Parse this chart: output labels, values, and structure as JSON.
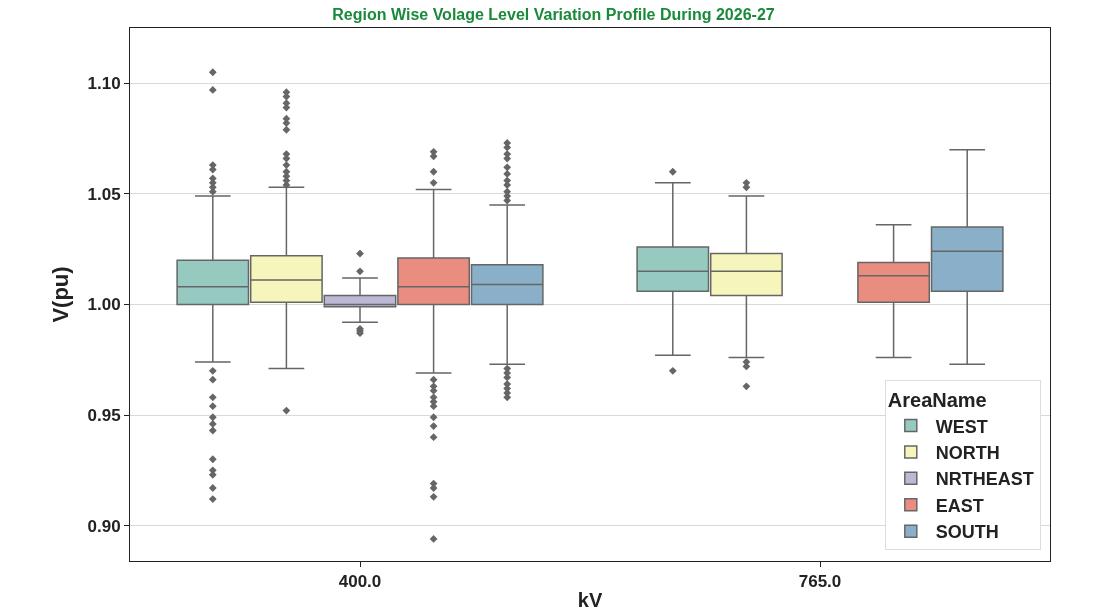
{
  "chart_data": {
    "type": "box",
    "title": "Region Wise Volage Level Variation Profile During 2026-27",
    "xlabel": "kV",
    "ylabel": "V(pu)",
    "legend_title": "AreaName",
    "categories": [
      "400.0",
      "765.0"
    ],
    "ylim": [
      0.884,
      1.125
    ],
    "yticks": [
      {
        "value": 0.9,
        "label": "0.90"
      },
      {
        "value": 0.95,
        "label": "0.95"
      },
      {
        "value": 1.0,
        "label": "1.00"
      },
      {
        "value": 1.05,
        "label": "1.05"
      },
      {
        "value": 1.1,
        "label": "1.10"
      }
    ],
    "grid": "y",
    "legend": "bottom right",
    "marker": "diamond",
    "series": [
      {
        "name": "WEST",
        "color": "#96cac1",
        "boxes": [
          {
            "low": 0.974,
            "q1": 1.0,
            "median": 1.008,
            "q3": 1.02,
            "high": 1.049,
            "outliers": [
              1.105,
              1.097,
              1.063,
              1.061,
              1.057,
              1.055,
              1.053,
              1.051,
              0.97,
              0.966,
              0.958,
              0.954,
              0.949,
              0.946,
              0.943,
              0.93,
              0.925,
              0.923,
              0.917,
              0.912
            ]
          },
          {
            "low": 0.977,
            "q1": 1.006,
            "median": 1.015,
            "q3": 1.026,
            "high": 1.055,
            "outliers": [
              1.06,
              0.97
            ]
          }
        ]
      },
      {
        "name": "NORTH",
        "color": "#f6f6bc",
        "boxes": [
          {
            "low": 0.971,
            "q1": 1.001,
            "median": 1.011,
            "q3": 1.022,
            "high": 1.053,
            "outliers": [
              1.096,
              1.094,
              1.091,
              1.089,
              1.084,
              1.082,
              1.079,
              1.068,
              1.066,
              1.063,
              1.06,
              1.058,
              1.056,
              1.054,
              0.952
            ]
          },
          {
            "low": 0.976,
            "q1": 1.004,
            "median": 1.015,
            "q3": 1.023,
            "high": 1.049,
            "outliers": [
              1.055,
              1.053,
              0.974,
              0.972,
              0.963
            ]
          }
        ]
      },
      {
        "name": "NRTHEAST",
        "color": "#bcb9d6",
        "boxes": [
          {
            "low": 0.992,
            "q1": 0.999,
            "median": 1.0,
            "q3": 1.004,
            "high": 1.012,
            "outliers": [
              1.023,
              1.015,
              0.989,
              0.988,
              0.987
            ]
          },
          null
        ]
      },
      {
        "name": "EAST",
        "color": "#e98d81",
        "boxes": [
          {
            "low": 0.969,
            "q1": 1.0,
            "median": 1.008,
            "q3": 1.021,
            "high": 1.052,
            "outliers": [
              1.069,
              1.067,
              1.06,
              1.055,
              0.966,
              0.963,
              0.961,
              0.958,
              0.956,
              0.954,
              0.949,
              0.945,
              0.94,
              0.919,
              0.917,
              0.913,
              0.894
            ]
          },
          {
            "low": 0.976,
            "q1": 1.001,
            "median": 1.013,
            "q3": 1.019,
            "high": 1.036
          }
        ]
      },
      {
        "name": "SOUTH",
        "color": "#8aafc9",
        "boxes": [
          {
            "low": 0.973,
            "q1": 1.0,
            "median": 1.009,
            "q3": 1.018,
            "high": 1.045,
            "outliers": [
              1.073,
              1.071,
              1.068,
              1.066,
              1.062,
              1.059,
              1.056,
              1.054,
              1.051,
              1.049,
              1.047,
              0.971,
              0.969,
              0.967,
              0.964,
              0.962,
              0.96,
              0.958
            ]
          },
          {
            "low": 0.973,
            "q1": 1.006,
            "median": 1.024,
            "q3": 1.035,
            "high": 1.07
          }
        ]
      }
    ]
  }
}
